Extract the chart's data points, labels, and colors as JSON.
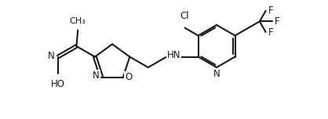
{
  "bg_color": "#ffffff",
  "line_color": "#1a1a1a",
  "line_width": 1.5,
  "font_size": 8.5,
  "figsize": [
    4.18,
    1.52
  ],
  "dpi": 100,
  "xlim": [
    0,
    10.5
  ],
  "ylim": [
    0,
    4.0
  ]
}
